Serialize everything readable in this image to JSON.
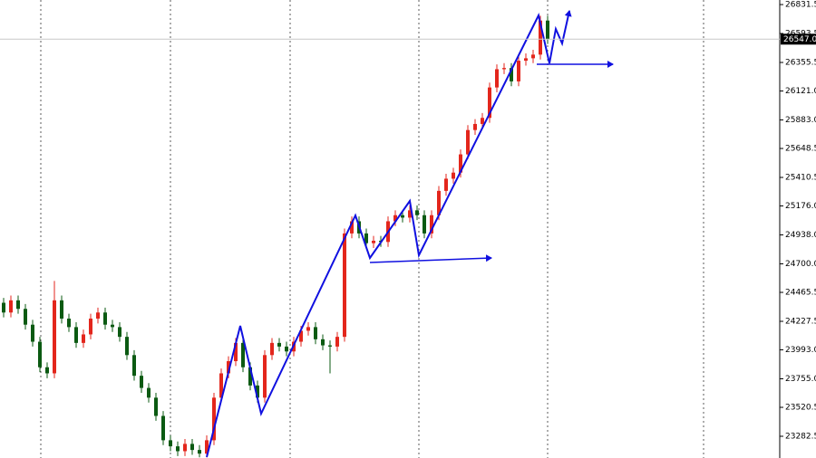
{
  "chart_data": {
    "type": "candlestick",
    "up_color": "#e3261c",
    "down_color": "#0b5a12",
    "ylim": [
      23104,
      26869
    ],
    "yticks": [
      26831.5,
      26593.5,
      26355.5,
      {
        "value": 26121,
        "label": "26121.0"
      },
      {
        "value": 25883,
        "label": "25883.0"
      },
      25648.5,
      25410.5,
      {
        "value": 25176,
        "label": "25176.0"
      },
      {
        "value": 24938,
        "label": "24938.0"
      },
      {
        "value": 24700,
        "label": "24700.0"
      },
      24465.5,
      24227.5,
      {
        "value": 23993,
        "label": "23993.0"
      },
      {
        "value": 23755,
        "label": "23755.0"
      },
      23520.5,
      23282.5
    ],
    "last_price": {
      "value": 26547,
      "label": "26547.0"
    },
    "open": [
      24380,
      24300,
      24400,
      24330,
      24200,
      24060,
      23850,
      23800,
      24400,
      24250,
      24180,
      24050,
      24120,
      24250,
      24300,
      24200,
      24180,
      24100,
      23950,
      23780,
      23680,
      23600,
      23450,
      23250,
      23200,
      23160,
      23220,
      23170,
      23140,
      23250,
      23600,
      23800,
      23900,
      24050,
      23850,
      23700,
      23600,
      23950,
      24050,
      24020,
      23980,
      24060,
      24150,
      24180,
      24080,
      24030,
      24020,
      24100,
      24950,
      25050,
      24950,
      24870,
      24890,
      24880,
      25050,
      25100,
      25080,
      25140,
      25100,
      24950,
      25100,
      25300,
      25400,
      25450,
      25600,
      25800,
      25850,
      25900,
      26150,
      26300,
      26310,
      26200,
      26370,
      26390,
      26420,
      26700
    ],
    "high": [
      24420,
      24440,
      24440,
      24370,
      24240,
      24100,
      23890,
      24560,
      24440,
      24290,
      24220,
      24160,
      24290,
      24340,
      24340,
      24240,
      24220,
      24140,
      23990,
      23820,
      23720,
      23640,
      23490,
      23290,
      23240,
      23260,
      23260,
      23210,
      23290,
      23640,
      23840,
      23940,
      24090,
      24090,
      23890,
      23740,
      23990,
      24090,
      24090,
      24060,
      24100,
      24190,
      24220,
      24220,
      24120,
      24070,
      24140,
      24990,
      25090,
      25090,
      24990,
      24930,
      24930,
      25090,
      25140,
      25140,
      25180,
      25180,
      25140,
      25140,
      25340,
      25440,
      25490,
      25640,
      25840,
      25890,
      25940,
      26190,
      26340,
      26350,
      26350,
      26410,
      26430,
      26460,
      26740,
      26740
    ],
    "low": [
      24260,
      24260,
      24290,
      24160,
      24020,
      23810,
      23760,
      23760,
      24210,
      24140,
      24010,
      24010,
      24080,
      24210,
      24160,
      24140,
      24060,
      23910,
      23740,
      23640,
      23560,
      23410,
      23210,
      23160,
      23120,
      23120,
      23130,
      23110,
      23110,
      23210,
      23560,
      23760,
      23860,
      23810,
      23660,
      23560,
      23560,
      23910,
      23980,
      23940,
      23940,
      24020,
      24110,
      24040,
      23990,
      23800,
      23980,
      24060,
      24910,
      24910,
      24830,
      24830,
      24840,
      24840,
      25010,
      25040,
      25040,
      25060,
      24910,
      24910,
      25060,
      25260,
      25360,
      25410,
      25560,
      25760,
      25810,
      25860,
      26110,
      26260,
      26160,
      26160,
      26330,
      26350,
      26380,
      26507
    ],
    "close": [
      24300,
      24400,
      24330,
      24200,
      24060,
      23850,
      23800,
      24400,
      24250,
      24180,
      24050,
      24120,
      24250,
      24300,
      24200,
      24180,
      24100,
      23950,
      23780,
      23680,
      23600,
      23450,
      23250,
      23200,
      23160,
      23220,
      23170,
      23140,
      23250,
      23600,
      23800,
      23900,
      24050,
      23850,
      23700,
      23600,
      23950,
      24050,
      24020,
      23980,
      24060,
      24150,
      24180,
      24080,
      24030,
      24020,
      24100,
      24950,
      25050,
      24950,
      24870,
      24890,
      24880,
      25050,
      25100,
      25080,
      25140,
      25100,
      24950,
      25100,
      25300,
      25400,
      25450,
      25600,
      25800,
      25850,
      25900,
      26150,
      26300,
      26310,
      26200,
      26370,
      26390,
      26420,
      26700,
      26547
    ]
  }
}
